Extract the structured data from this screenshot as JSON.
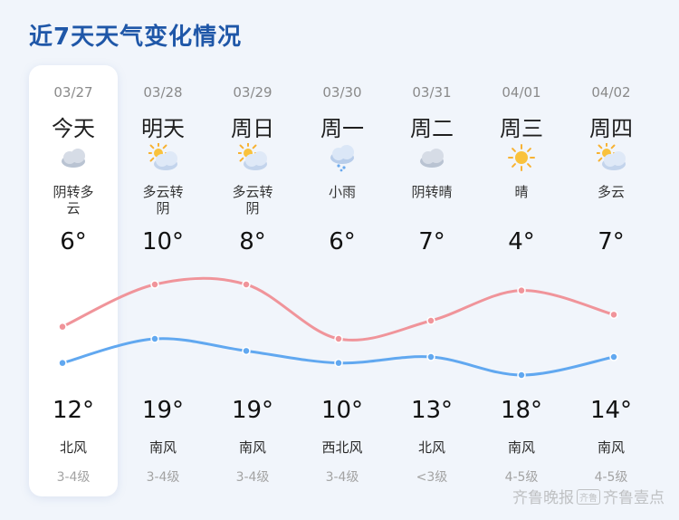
{
  "title": "近7天天气变化情况",
  "days": [
    {
      "date": "03/27",
      "weekday": "今天",
      "icon": "overcast-cloud-icon",
      "desc": "阴转多\n云",
      "low": "6°",
      "high": "12°",
      "wind": "北风",
      "level": "3-4级",
      "lowValue": 6,
      "highValue": 12
    },
    {
      "date": "03/28",
      "weekday": "明天",
      "icon": "partly-cloudy-icon",
      "desc": "多云转\n阴",
      "low": "10°",
      "high": "19°",
      "wind": "南风",
      "level": "3-4级",
      "lowValue": 10,
      "highValue": 19
    },
    {
      "date": "03/29",
      "weekday": "周日",
      "icon": "partly-cloudy-icon",
      "desc": "多云转\n阴",
      "low": "8°",
      "high": "19°",
      "wind": "南风",
      "level": "3-4级",
      "lowValue": 8,
      "highValue": 19
    },
    {
      "date": "03/30",
      "weekday": "周一",
      "icon": "light-rain-icon",
      "desc": "小雨",
      "low": "6°",
      "high": "10°",
      "wind": "西北风",
      "level": "3-4级",
      "lowValue": 6,
      "highValue": 10
    },
    {
      "date": "03/31",
      "weekday": "周二",
      "icon": "overcast-cloud-icon",
      "desc": "阴转晴",
      "low": "7°",
      "high": "13°",
      "wind": "北风",
      "level": "<3级",
      "lowValue": 7,
      "highValue": 13
    },
    {
      "date": "04/01",
      "weekday": "周三",
      "icon": "sunny-icon",
      "desc": "晴",
      "low": "4°",
      "high": "18°",
      "wind": "南风",
      "level": "4-5级",
      "lowValue": 4,
      "highValue": 18
    },
    {
      "date": "04/02",
      "weekday": "周四",
      "icon": "partly-cloudy-icon",
      "desc": "多云",
      "low": "7°",
      "high": "14°",
      "wind": "南风",
      "level": "4-5级",
      "lowValue": 7,
      "highValue": 14
    }
  ],
  "colors": {
    "high_line": "#f0949a",
    "low_line": "#61a8f0",
    "title": "#1f57a8"
  },
  "watermark": {
    "text1": "齐鲁晚报",
    "box": "齐鲁",
    "text2": "齐鲁壹点"
  }
}
